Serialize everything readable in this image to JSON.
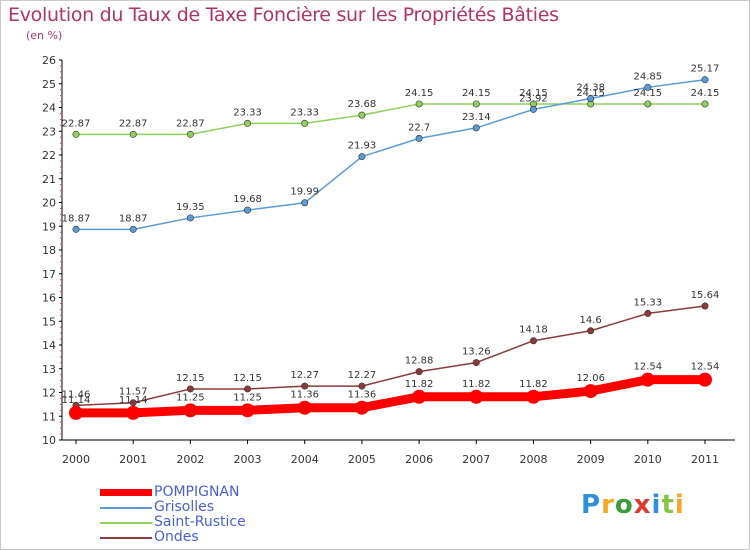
{
  "title": "Evolution du Taux de Taxe Foncière sur les Propriétés Bâties",
  "subtitle": "(en %)",
  "logo": "Proxiti",
  "chart_data": {
    "type": "line",
    "title": "Evolution du Taux de Taxe Foncière sur les Propriétés Bâties",
    "ylabel": "(en %)",
    "xlabel": "",
    "x": [
      "2000",
      "2001",
      "2002",
      "2003",
      "2004",
      "2005",
      "2006",
      "2007",
      "2008",
      "2009",
      "2010",
      "2011"
    ],
    "ylim": [
      10,
      26
    ],
    "yticks": [
      "10",
      "11",
      "12",
      "13",
      "14",
      "15",
      "16",
      "17",
      "18",
      "19",
      "20",
      "21",
      "22",
      "23",
      "24",
      "25",
      "26"
    ],
    "grid": false,
    "legend": "bottom-left",
    "series": [
      {
        "name": "POMPIGNAN",
        "color": "#ff0000",
        "labelColor": "#7a7a7a",
        "values": [
          11.14,
          11.14,
          11.25,
          11.25,
          11.36,
          11.36,
          11.82,
          11.82,
          11.82,
          12.06,
          12.54,
          12.54
        ],
        "labels": [
          "11.14",
          "11.14",
          "11.25",
          "11.25",
          "11.36",
          "11.36",
          "11.82",
          "11.82",
          "11.82",
          "12.06",
          "12.54",
          "12.54"
        ]
      },
      {
        "name": "Grisolles",
        "color": "#5b9bd5",
        "labelColor": "#555555",
        "values": [
          18.87,
          18.87,
          19.35,
          19.68,
          19.99,
          21.93,
          22.7,
          23.14,
          23.92,
          24.38,
          24.85,
          25.17
        ],
        "labels": [
          "18.87",
          "18.87",
          "19.35",
          "19.68",
          "19.99",
          "21.93",
          "22.7",
          "23.14",
          "23.92",
          "24.38",
          "24.85",
          "25.17"
        ]
      },
      {
        "name": "Saint-Rustice",
        "color": "#8ed05a",
        "labelColor": "#555555",
        "values": [
          22.87,
          22.87,
          22.87,
          23.33,
          23.33,
          23.68,
          24.15,
          24.15,
          24.15,
          24.15,
          24.15,
          24.15
        ],
        "labels": [
          "22.87",
          "22.87",
          "22.87",
          "23.33",
          "23.33",
          "23.68",
          "24.15",
          "24.15",
          "24.15",
          "24.15",
          "24.15",
          "24.15"
        ]
      },
      {
        "name": "Ondes",
        "color": "#8b3b3b",
        "labelColor": "#555555",
        "values": [
          11.46,
          11.57,
          12.15,
          12.15,
          12.27,
          12.27,
          12.88,
          13.26,
          14.18,
          14.6,
          15.33,
          15.64
        ],
        "labels": [
          "11.46",
          "11.57",
          "12.15",
          "12.15",
          "12.27",
          "12.27",
          "12.88",
          "13.26",
          "14.18",
          "14.6",
          "15.33",
          "15.64"
        ]
      }
    ]
  }
}
